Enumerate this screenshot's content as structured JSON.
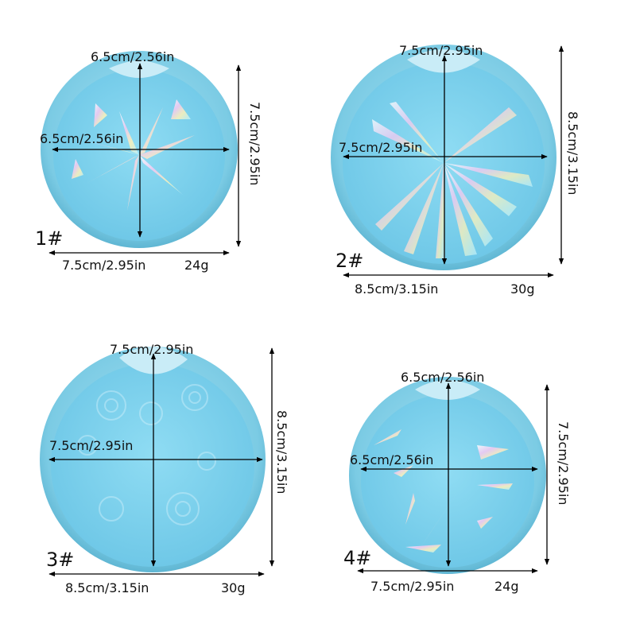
{
  "palette": {
    "silicone_outer": "#6ec3de",
    "silicone_inner": "#8ed6ee",
    "cavity": "#7cd0ec",
    "arrow": "#000000"
  },
  "molds": [
    {
      "id": "1#",
      "pattern": "holographic shards starburst",
      "top_label": "6.5cm/2.56in",
      "middle_label": "6.5cm/2.56in",
      "side_label": "7.5cm/2.95in",
      "bottom_label": "7.5cm/2.95in",
      "weight": "24g"
    },
    {
      "id": "2#",
      "pattern": "holographic sunburst rays",
      "top_label": "7.5cm/2.95in",
      "middle_label": "7.5cm/2.95in",
      "side_label": "8.5cm/3.15in",
      "bottom_label": "8.5cm/3.15in",
      "weight": "30g"
    },
    {
      "id": "3#",
      "pattern": "embossed flowers",
      "top_label": "7.5cm/2.95in",
      "middle_label": "7.5cm/2.95in",
      "side_label": "8.5cm/3.15in",
      "bottom_label": "8.5cm/3.15in",
      "weight": "30g"
    },
    {
      "id": "4#",
      "pattern": "scattered holographic shards",
      "top_label": "6.5cm/2.56in",
      "middle_label": "6.5cm/2.56in",
      "side_label": "7.5cm/2.95in",
      "bottom_label": "7.5cm/2.95in",
      "weight": "24g"
    }
  ]
}
